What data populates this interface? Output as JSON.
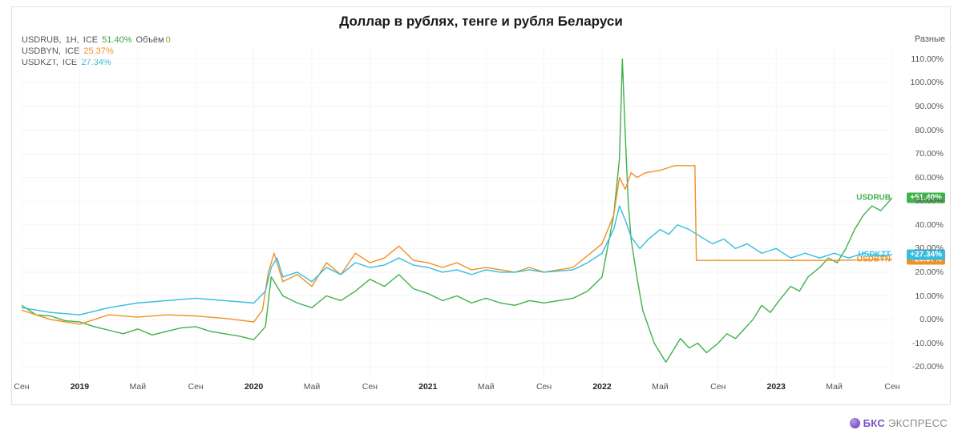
{
  "title": {
    "text": "Доллар в рублях, тенге и рубля Беларуси",
    "fontsize": 17
  },
  "corner_label": "Разные",
  "legend": {
    "volume_label": "Объём",
    "volume_value": "0",
    "volume_color": "#8fa832",
    "rows": [
      {
        "symbol": "USDRUB",
        "interval": "1H",
        "exchange": "ICE",
        "pct": "51.40%",
        "color": "#3fa447"
      },
      {
        "symbol": "USDBYN",
        "interval": "",
        "exchange": "ICE",
        "pct": "25.37%",
        "color": "#f29022"
      },
      {
        "symbol": "USDKZT",
        "interval": "",
        "exchange": "ICE",
        "pct": "27.34%",
        "color": "#3fb7d6"
      }
    ]
  },
  "chart": {
    "type": "line",
    "background_color": "#ffffff",
    "grid_color": "#f2f2f2",
    "axis_color": "#e0e0e0",
    "label_color": "#555555",
    "label_fontsize": 10.5,
    "line_width": 1.4,
    "x": {
      "min": 0,
      "max": 60,
      "ticks": [
        {
          "pos": 0,
          "label": "Сен"
        },
        {
          "pos": 4,
          "label": "2019",
          "bold": true
        },
        {
          "pos": 8,
          "label": "Май"
        },
        {
          "pos": 12,
          "label": "Сен"
        },
        {
          "pos": 16,
          "label": "2020",
          "bold": true
        },
        {
          "pos": 20,
          "label": "Май"
        },
        {
          "pos": 24,
          "label": "Сен"
        },
        {
          "pos": 28,
          "label": "2021",
          "bold": true
        },
        {
          "pos": 32,
          "label": "Май"
        },
        {
          "pos": 36,
          "label": "Сен"
        },
        {
          "pos": 40,
          "label": "2022",
          "bold": true
        },
        {
          "pos": 44,
          "label": "Май"
        },
        {
          "pos": 48,
          "label": "Сен"
        },
        {
          "pos": 52,
          "label": "2023",
          "bold": true
        },
        {
          "pos": 56,
          "label": "Май"
        },
        {
          "pos": 60,
          "label": "Сен"
        }
      ]
    },
    "y": {
      "min": -25,
      "max": 115,
      "ticks": [
        -20,
        -10,
        0,
        10,
        20,
        30,
        40,
        50,
        60,
        70,
        80,
        90,
        100,
        110
      ],
      "format_suffix": ".00%"
    },
    "series": [
      {
        "name": "USDRUB",
        "color": "#3fb24a",
        "badge": {
          "label": "USDRUB",
          "pct": "+51.40%"
        },
        "data": [
          [
            0,
            6
          ],
          [
            1,
            2
          ],
          [
            2,
            1.5
          ],
          [
            3,
            -0.5
          ],
          [
            4,
            -1
          ],
          [
            5,
            -3
          ],
          [
            6,
            -4.5
          ],
          [
            7,
            -6
          ],
          [
            8,
            -4
          ],
          [
            9,
            -6.5
          ],
          [
            10,
            -5
          ],
          [
            11,
            -3.5
          ],
          [
            12,
            -3
          ],
          [
            13,
            -5
          ],
          [
            14,
            -6
          ],
          [
            15,
            -7
          ],
          [
            16,
            -8.5
          ],
          [
            16.8,
            -3
          ],
          [
            17.2,
            18
          ],
          [
            17.6,
            14
          ],
          [
            18,
            10
          ],
          [
            19,
            7
          ],
          [
            20,
            5
          ],
          [
            21,
            10
          ],
          [
            22,
            8
          ],
          [
            23,
            12
          ],
          [
            24,
            17
          ],
          [
            25,
            14
          ],
          [
            26,
            19
          ],
          [
            27,
            13
          ],
          [
            28,
            11
          ],
          [
            29,
            8
          ],
          [
            30,
            10
          ],
          [
            31,
            7
          ],
          [
            32,
            9
          ],
          [
            33,
            7
          ],
          [
            34,
            6
          ],
          [
            35,
            8
          ],
          [
            36,
            7
          ],
          [
            37,
            8
          ],
          [
            38,
            9
          ],
          [
            39,
            12
          ],
          [
            40,
            18
          ],
          [
            40.8,
            44
          ],
          [
            41.2,
            68
          ],
          [
            41.4,
            110
          ],
          [
            41.6,
            78
          ],
          [
            41.8,
            50
          ],
          [
            42,
            34
          ],
          [
            42.4,
            18
          ],
          [
            42.8,
            4
          ],
          [
            43.2,
            -3
          ],
          [
            43.6,
            -10
          ],
          [
            44,
            -14
          ],
          [
            44.4,
            -18
          ],
          [
            44.8,
            -14
          ],
          [
            45.4,
            -8
          ],
          [
            46,
            -12
          ],
          [
            46.6,
            -10
          ],
          [
            47.2,
            -14
          ],
          [
            48,
            -10
          ],
          [
            48.6,
            -6
          ],
          [
            49.2,
            -8
          ],
          [
            49.8,
            -4
          ],
          [
            50.4,
            0
          ],
          [
            51,
            6
          ],
          [
            51.6,
            3
          ],
          [
            52.2,
            8
          ],
          [
            53,
            14
          ],
          [
            53.6,
            12
          ],
          [
            54.2,
            18
          ],
          [
            55,
            22
          ],
          [
            55.6,
            26
          ],
          [
            56.2,
            24
          ],
          [
            56.8,
            30
          ],
          [
            57.4,
            38
          ],
          [
            58,
            44
          ],
          [
            58.6,
            48
          ],
          [
            59.2,
            46
          ],
          [
            60,
            51.4
          ]
        ]
      },
      {
        "name": "USDBYN",
        "color": "#f29022",
        "badge": {
          "label": "USDBYN",
          "pct": "+25.37%"
        },
        "data": [
          [
            0,
            4
          ],
          [
            2,
            0
          ],
          [
            4,
            -2
          ],
          [
            6,
            2
          ],
          [
            8,
            1
          ],
          [
            10,
            2
          ],
          [
            12,
            1.5
          ],
          [
            14,
            0.5
          ],
          [
            16,
            -1
          ],
          [
            16.6,
            4
          ],
          [
            17,
            20
          ],
          [
            17.4,
            28
          ],
          [
            18,
            16
          ],
          [
            19,
            19
          ],
          [
            20,
            14
          ],
          [
            21,
            24
          ],
          [
            22,
            19
          ],
          [
            23,
            28
          ],
          [
            24,
            24
          ],
          [
            25,
            26
          ],
          [
            26,
            31
          ],
          [
            27,
            25
          ],
          [
            28,
            24
          ],
          [
            29,
            22
          ],
          [
            30,
            24
          ],
          [
            31,
            21
          ],
          [
            32,
            22
          ],
          [
            33,
            21
          ],
          [
            34,
            20
          ],
          [
            35,
            22
          ],
          [
            36,
            20
          ],
          [
            37,
            21
          ],
          [
            38,
            22
          ],
          [
            39,
            27
          ],
          [
            40,
            32
          ],
          [
            40.8,
            44
          ],
          [
            41.2,
            60
          ],
          [
            41.6,
            55
          ],
          [
            42,
            62
          ],
          [
            42.4,
            60
          ],
          [
            43,
            62
          ],
          [
            44,
            63
          ],
          [
            45,
            65
          ],
          [
            46,
            65
          ],
          [
            46.4,
            65
          ],
          [
            46.5,
            25
          ],
          [
            47,
            25
          ],
          [
            48,
            25
          ],
          [
            50,
            25
          ],
          [
            52,
            25
          ],
          [
            54,
            25
          ],
          [
            56,
            25
          ],
          [
            58,
            25.2
          ],
          [
            60,
            25.37
          ]
        ]
      },
      {
        "name": "USDKZT",
        "color": "#33bde0",
        "badge": {
          "label": "USDKZT",
          "pct": "+27.34%"
        },
        "data": [
          [
            0,
            5
          ],
          [
            2,
            3
          ],
          [
            4,
            2
          ],
          [
            6,
            5
          ],
          [
            8,
            7
          ],
          [
            10,
            8
          ],
          [
            12,
            9
          ],
          [
            14,
            8
          ],
          [
            16,
            7
          ],
          [
            16.8,
            12
          ],
          [
            17.2,
            22
          ],
          [
            17.6,
            26
          ],
          [
            18,
            18
          ],
          [
            19,
            20
          ],
          [
            20,
            16
          ],
          [
            21,
            22
          ],
          [
            22,
            19
          ],
          [
            23,
            24
          ],
          [
            24,
            22
          ],
          [
            25,
            23
          ],
          [
            26,
            26
          ],
          [
            27,
            23
          ],
          [
            28,
            22
          ],
          [
            29,
            20
          ],
          [
            30,
            21
          ],
          [
            31,
            19
          ],
          [
            32,
            21
          ],
          [
            33,
            20
          ],
          [
            34,
            20
          ],
          [
            35,
            21
          ],
          [
            36,
            20
          ],
          [
            37,
            20.5
          ],
          [
            38,
            21
          ],
          [
            39,
            24
          ],
          [
            40,
            28
          ],
          [
            40.8,
            38
          ],
          [
            41.2,
            48
          ],
          [
            41.6,
            42
          ],
          [
            42,
            35
          ],
          [
            42.6,
            30
          ],
          [
            43.2,
            34
          ],
          [
            44,
            38
          ],
          [
            44.6,
            36
          ],
          [
            45.2,
            40
          ],
          [
            46,
            38
          ],
          [
            46.8,
            35
          ],
          [
            47.6,
            32
          ],
          [
            48.4,
            34
          ],
          [
            49.2,
            30
          ],
          [
            50,
            32
          ],
          [
            51,
            28
          ],
          [
            52,
            30
          ],
          [
            53,
            26
          ],
          [
            54,
            28
          ],
          [
            55,
            26
          ],
          [
            56,
            28
          ],
          [
            57,
            26
          ],
          [
            58,
            28
          ],
          [
            59,
            27
          ],
          [
            60,
            27.34
          ]
        ]
      }
    ]
  },
  "footer": {
    "brand": "БКС",
    "rest": "ЭКСПРЕСС",
    "brand_color": "#7a52c7",
    "rest_color": "#888888"
  }
}
